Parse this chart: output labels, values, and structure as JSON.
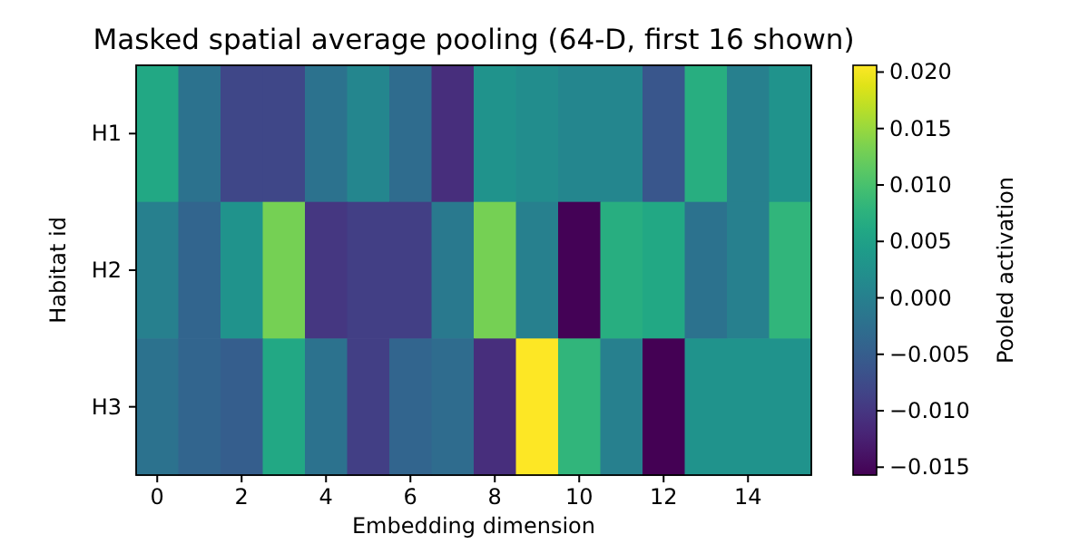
{
  "chart_data": {
    "type": "heatmap",
    "title": "Masked spatial average pooling (64-D, first 16 shown)",
    "xlabel": "Embedding dimension",
    "ylabel": "Habitat id",
    "clabel": "Pooled activation",
    "categories": [
      "0",
      null,
      "2",
      null,
      "4",
      null,
      "6",
      null,
      "8",
      null,
      "10",
      null,
      "12",
      null,
      "14",
      null
    ],
    "y_categories": [
      "H1",
      "H2",
      "H3"
    ],
    "cells": [
      [
        0.006,
        -0.002,
        -0.008,
        -0.008,
        -0.002,
        0.001,
        -0.003,
        -0.011,
        0.003,
        0.002,
        0.001,
        0.001,
        -0.006,
        0.007,
        0.0,
        0.003
      ],
      [
        0.0,
        -0.004,
        0.003,
        0.013,
        -0.01,
        -0.009,
        -0.009,
        -0.001,
        0.013,
        0.0,
        -0.0155,
        0.007,
        0.006,
        -0.002,
        0.0,
        0.008
      ],
      [
        -0.002,
        -0.004,
        -0.005,
        0.006,
        -0.002,
        -0.009,
        -0.004,
        -0.003,
        -0.011,
        0.0206,
        0.008,
        0.0,
        -0.0157,
        0.003,
        0.003,
        0.003
      ]
    ],
    "clim": [
      -0.0157,
      0.0206
    ],
    "cticks": [
      {
        "value": -0.015,
        "label": "−0.015"
      },
      {
        "value": -0.01,
        "label": "−0.010"
      },
      {
        "value": -0.005,
        "label": "−0.005"
      },
      {
        "value": 0,
        "label": "0.000"
      },
      {
        "value": 0.005,
        "label": "0.005"
      },
      {
        "value": 0.01,
        "label": "0.010"
      },
      {
        "value": 0.015,
        "label": "0.015"
      },
      {
        "value": 0.02,
        "label": "0.020"
      }
    ]
  }
}
